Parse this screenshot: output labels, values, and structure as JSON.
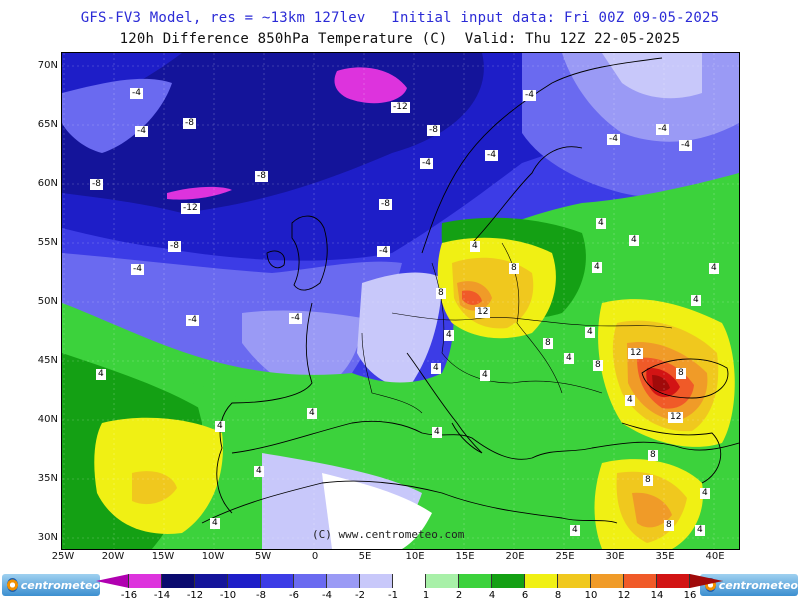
{
  "header": {
    "line1": "GFS-FV3 Model, res = ~13km 127lev   Initial input data: Fri 00Z 09-05-2025",
    "line2": "120h Difference 850hPa Temperature (C)  Valid: Thu 12Z 22-05-2025"
  },
  "axes": {
    "lat_labels": [
      "70N",
      "65N",
      "60N",
      "55N",
      "50N",
      "45N",
      "40N",
      "35N",
      "30N"
    ],
    "lon_labels": [
      "25W",
      "20W",
      "15W",
      "10W",
      "5W",
      "0",
      "5E",
      "10E",
      "15E",
      "20E",
      "25E",
      "30E",
      "35E",
      "40E"
    ]
  },
  "copyright": "(C) www.centrometeo.com",
  "colorbar": {
    "labels": [
      "-16",
      "-14",
      "-12",
      "-10",
      "-8",
      "-6",
      "-4",
      "-2",
      "-1",
      "1",
      "2",
      "4",
      "6",
      "8",
      "10",
      "12",
      "14",
      "16"
    ],
    "colors": [
      "#b000b0",
      "#dd33dd",
      "#0a0a6e",
      "#14149a",
      "#1e1ec8",
      "#3c3ce6",
      "#6a6af0",
      "#9a9af5",
      "#c8c8fa",
      "#ffffff",
      "#a8f0a8",
      "#3cd23c",
      "#14a014",
      "#f0f014",
      "#f0c81e",
      "#f09b28",
      "#f05a28",
      "#d21414",
      "#a00a0a"
    ]
  },
  "contour_labels": [
    {
      "v": "-4"
    },
    {
      "v": "-8"
    },
    {
      "v": "-4"
    },
    {
      "v": "-12"
    },
    {
      "v": "-8"
    },
    {
      "v": "-4"
    },
    {
      "v": "-4"
    },
    {
      "v": "-4"
    },
    {
      "v": "-4"
    },
    {
      "v": "-8"
    },
    {
      "v": "-4"
    },
    {
      "v": "-4"
    },
    {
      "v": "-8"
    },
    {
      "v": "-12"
    },
    {
      "v": "-8"
    },
    {
      "v": "-8"
    },
    {
      "v": "-4"
    },
    {
      "v": "-4"
    },
    {
      "v": "-4"
    },
    {
      "v": "-4"
    },
    {
      "v": "4"
    },
    {
      "v": "4"
    },
    {
      "v": "8"
    },
    {
      "v": "8"
    },
    {
      "v": "12"
    },
    {
      "v": "4"
    },
    {
      "v": "4"
    },
    {
      "v": "8"
    },
    {
      "v": "4"
    },
    {
      "v": "4"
    },
    {
      "v": "12"
    },
    {
      "v": "8"
    },
    {
      "v": "8"
    },
    {
      "v": "12"
    },
    {
      "v": "8"
    },
    {
      "v": "4"
    },
    {
      "v": "4"
    },
    {
      "v": "4"
    },
    {
      "v": "4"
    },
    {
      "v": "4"
    },
    {
      "v": "4"
    },
    {
      "v": "4"
    },
    {
      "v": "4"
    },
    {
      "v": "4"
    },
    {
      "v": "4"
    },
    {
      "v": "4"
    },
    {
      "v": "4"
    },
    {
      "v": "8"
    },
    {
      "v": "8"
    },
    {
      "v": "4"
    },
    {
      "v": "4"
    },
    {
      "v": "4"
    }
  ],
  "logo": {
    "text": "centrometeo"
  }
}
